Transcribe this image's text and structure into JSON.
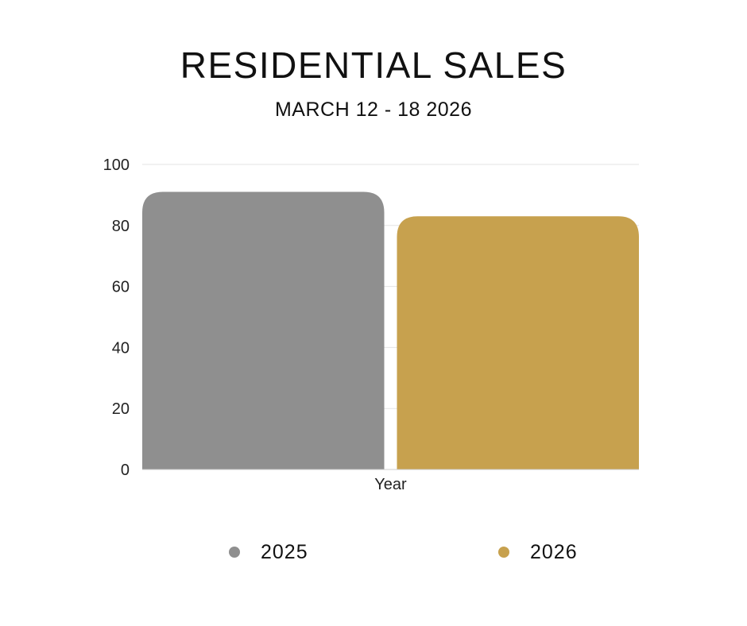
{
  "chart": {
    "title": "RESIDENTIAL SALES",
    "subtitle": "MARCH 12 - 18 2026"
  },
  "chart_data": {
    "type": "bar",
    "title": "RESIDENTIAL SALES",
    "subtitle": "MARCH 12 - 18 2026",
    "categories": [
      "Year"
    ],
    "xlabel": "Year",
    "ylabel": "",
    "ylim": [
      0,
      100
    ],
    "yticks": [
      0,
      20,
      40,
      60,
      80,
      100
    ],
    "grid": true,
    "legend_position": "bottom",
    "series": [
      {
        "name": "2025",
        "values": [
          91
        ],
        "color": "#8f8f8f"
      },
      {
        "name": "2026",
        "values": [
          83
        ],
        "color": "#c7a14e"
      }
    ]
  }
}
